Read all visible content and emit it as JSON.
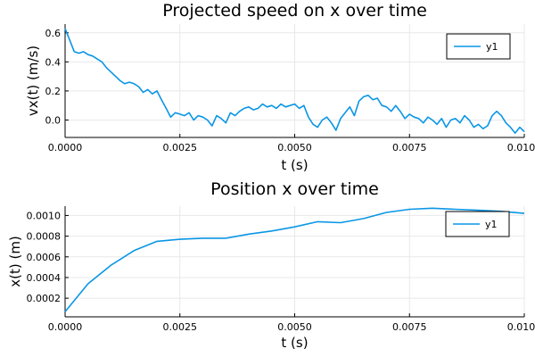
{
  "colors": {
    "series": "#0a96e6",
    "grid": "#e8e8e8",
    "axis": "#000000"
  },
  "chart_data": [
    {
      "type": "line",
      "title": "Projected speed on x over time",
      "xlabel": "t (s)",
      "ylabel": "vx(t) (m/s)",
      "xlim": [
        0,
        0.01
      ],
      "ylim": [
        -0.12,
        0.66
      ],
      "xticks": [
        0,
        0.0025,
        0.005,
        0.0075,
        0.01
      ],
      "xtick_labels": [
        "0.0000",
        "0.0025",
        "0.0050",
        "0.0075",
        "0.0100"
      ],
      "yticks": [
        0,
        0.2,
        0.4,
        0.6
      ],
      "ytick_labels": [
        "0.0",
        "0.2",
        "0.4",
        "0.6"
      ],
      "grid": true,
      "legend_position": "top-right",
      "series": [
        {
          "name": "y1",
          "x": [
            0,
            0.0001,
            0.0002,
            0.0003,
            0.0004,
            0.0005,
            0.0006,
            0.0007,
            0.0008,
            0.0009,
            0.001,
            0.0011,
            0.0012,
            0.0013,
            0.0014,
            0.0015,
            0.0016,
            0.0017,
            0.0018,
            0.0019,
            0.002,
            0.0021,
            0.0022,
            0.0023,
            0.0024,
            0.0025,
            0.0026,
            0.0027,
            0.0028,
            0.0029,
            0.003,
            0.0031,
            0.0032,
            0.0033,
            0.0034,
            0.0035,
            0.0036,
            0.0037,
            0.0038,
            0.0039,
            0.004,
            0.0041,
            0.0042,
            0.0043,
            0.0044,
            0.0045,
            0.0046,
            0.0047,
            0.0048,
            0.0049,
            0.005,
            0.0051,
            0.0052,
            0.0053,
            0.0054,
            0.0055,
            0.0056,
            0.0057,
            0.0058,
            0.0059,
            0.006,
            0.0061,
            0.0062,
            0.0063,
            0.0064,
            0.0065,
            0.0066,
            0.0067,
            0.0068,
            0.0069,
            0.007,
            0.0071,
            0.0072,
            0.0073,
            0.0074,
            0.0075,
            0.0076,
            0.0077,
            0.0078,
            0.0079,
            0.008,
            0.0081,
            0.0082,
            0.0083,
            0.0084,
            0.0085,
            0.0086,
            0.0087,
            0.0088,
            0.0089,
            0.009,
            0.0091,
            0.0092,
            0.0093,
            0.0094,
            0.0095,
            0.0096,
            0.0097,
            0.0098,
            0.0099,
            0.01
          ],
          "y": [
            0.63,
            0.55,
            0.47,
            0.46,
            0.47,
            0.45,
            0.44,
            0.42,
            0.4,
            0.36,
            0.33,
            0.3,
            0.27,
            0.25,
            0.26,
            0.25,
            0.23,
            0.19,
            0.21,
            0.18,
            0.2,
            0.14,
            0.08,
            0.02,
            0.05,
            0.04,
            0.03,
            0.05,
            0.0,
            0.03,
            0.02,
            0.0,
            -0.04,
            0.03,
            0.01,
            -0.02,
            0.05,
            0.03,
            0.06,
            0.08,
            0.09,
            0.07,
            0.08,
            0.11,
            0.09,
            0.1,
            0.08,
            0.11,
            0.09,
            0.1,
            0.11,
            0.08,
            0.1,
            0.02,
            -0.03,
            -0.05,
            0.0,
            0.02,
            -0.02,
            -0.07,
            0.01,
            0.05,
            0.09,
            0.03,
            0.13,
            0.16,
            0.17,
            0.14,
            0.15,
            0.1,
            0.09,
            0.06,
            0.1,
            0.06,
            0.01,
            0.04,
            0.02,
            0.01,
            -0.02,
            0.02,
            0.0,
            -0.03,
            0.01,
            -0.05,
            0.0,
            0.01,
            -0.02,
            0.03,
            0.0,
            -0.05,
            -0.03,
            -0.06,
            -0.04,
            0.03,
            0.06,
            0.03,
            -0.02,
            -0.05,
            -0.09,
            -0.05,
            -0.08
          ]
        }
      ]
    },
    {
      "type": "line",
      "title": "Position x over time",
      "xlabel": "t (s)",
      "ylabel": "x(t) (m)",
      "xlim": [
        0,
        0.01
      ],
      "ylim": [
        2e-05,
        0.00109
      ],
      "xticks": [
        0,
        0.0025,
        0.005,
        0.0075,
        0.01
      ],
      "xtick_labels": [
        "0.0000",
        "0.0025",
        "0.0050",
        "0.0075",
        "0.0100"
      ],
      "yticks": [
        0.0002,
        0.0004,
        0.0006,
        0.0008,
        0.001
      ],
      "ytick_labels": [
        "0.0002",
        "0.0004",
        "0.0006",
        "0.0008",
        "0.0010"
      ],
      "grid": true,
      "legend_position": "top-right",
      "series": [
        {
          "name": "y1",
          "x": [
            0,
            0.0005,
            0.001,
            0.0015,
            0.002,
            0.0025,
            0.003,
            0.0035,
            0.004,
            0.0045,
            0.005,
            0.0055,
            0.006,
            0.0065,
            0.007,
            0.0075,
            0.008,
            0.0085,
            0.009,
            0.0095,
            0.01
          ],
          "y": [
            7e-05,
            0.00034,
            0.00052,
            0.00066,
            0.00075,
            0.00077,
            0.00078,
            0.00078,
            0.00082,
            0.00085,
            0.00089,
            0.00094,
            0.00093,
            0.00097,
            0.00103,
            0.00106,
            0.00107,
            0.00106,
            0.00105,
            0.00104,
            0.00102
          ]
        }
      ]
    }
  ]
}
